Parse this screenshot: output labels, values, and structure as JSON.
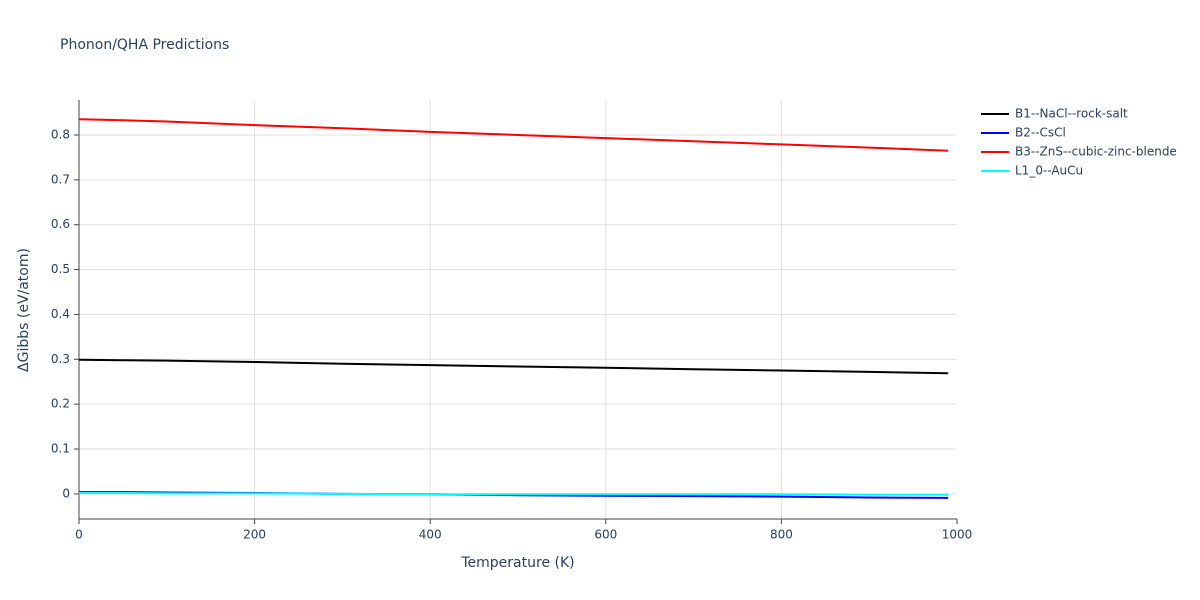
{
  "chart_data": {
    "type": "line",
    "title": "Phonon/QHA Predictions",
    "x_label": "Temperature (K)",
    "y_label": "ΔGibbs (eV/atom)",
    "x": [
      0,
      50,
      100,
      200,
      300,
      400,
      500,
      600,
      700,
      800,
      900,
      990
    ],
    "series": [
      {
        "name": "B1--NaCl--rock-salt",
        "color": "#000000",
        "values": [
          0.299,
          0.298,
          0.297,
          0.294,
          0.29,
          0.287,
          0.284,
          0.281,
          0.278,
          0.275,
          0.272,
          0.269
        ]
      },
      {
        "name": "B2--CsCl",
        "color": "#0000ff",
        "values": [
          0.004,
          0.004,
          0.003,
          0.002,
          0.0,
          -0.001,
          -0.003,
          -0.004,
          -0.005,
          -0.006,
          -0.008,
          -0.009
        ]
      },
      {
        "name": "B3--ZnS--cubic-zinc-blende",
        "color": "#ff0000",
        "values": [
          0.835,
          0.833,
          0.83,
          0.822,
          0.815,
          0.807,
          0.8,
          0.793,
          0.786,
          0.779,
          0.772,
          0.765
        ]
      },
      {
        "name": "L1_0--AuCu",
        "color": "#00ffff",
        "values": [
          0.002,
          0.002,
          0.001,
          0.001,
          0.0,
          -0.001,
          -0.001,
          -0.001,
          -0.001,
          -0.001,
          -0.002,
          -0.002
        ]
      }
    ],
    "xlim": [
      0,
      1000
    ],
    "xticks": [
      0,
      200,
      400,
      600,
      800,
      1000
    ],
    "ylim": [
      -0.056,
      0.878
    ],
    "yticks": [
      0,
      0.1,
      0.2,
      0.3,
      0.4,
      0.5,
      0.6,
      0.7,
      0.8
    ],
    "grid": true
  }
}
